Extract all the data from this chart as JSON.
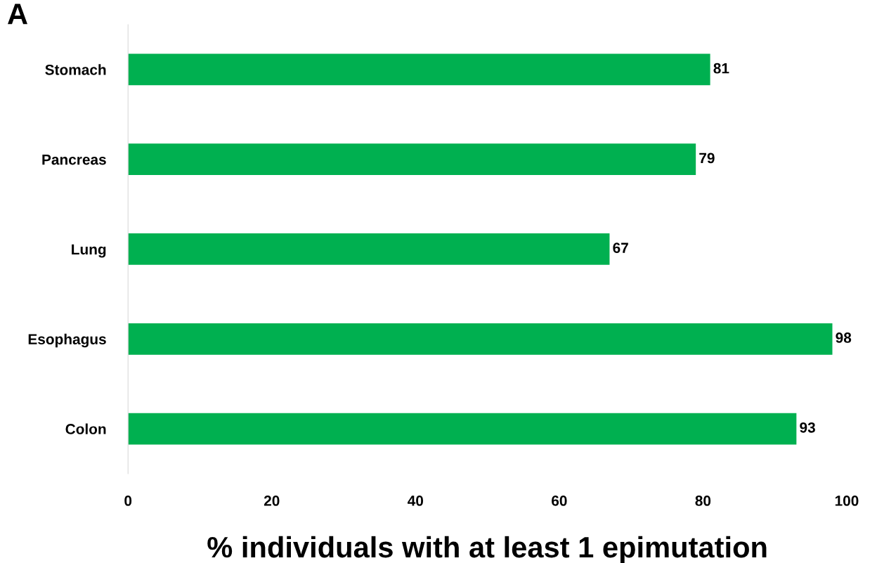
{
  "chart_data": {
    "type": "bar",
    "orientation": "horizontal",
    "categories": [
      "Stomach",
      "Pancreas",
      "Lung",
      "Esophagus",
      "Colon"
    ],
    "values": [
      81,
      79,
      67,
      98,
      93
    ],
    "color": "#00b050",
    "xlabel": "% individuals with at least 1 epimutation",
    "xlim": [
      0,
      100
    ],
    "xticks": [
      0,
      20,
      40,
      60,
      80,
      100
    ],
    "data_labels": true,
    "grid": false,
    "legend": false,
    "annotations": [
      "A"
    ]
  }
}
